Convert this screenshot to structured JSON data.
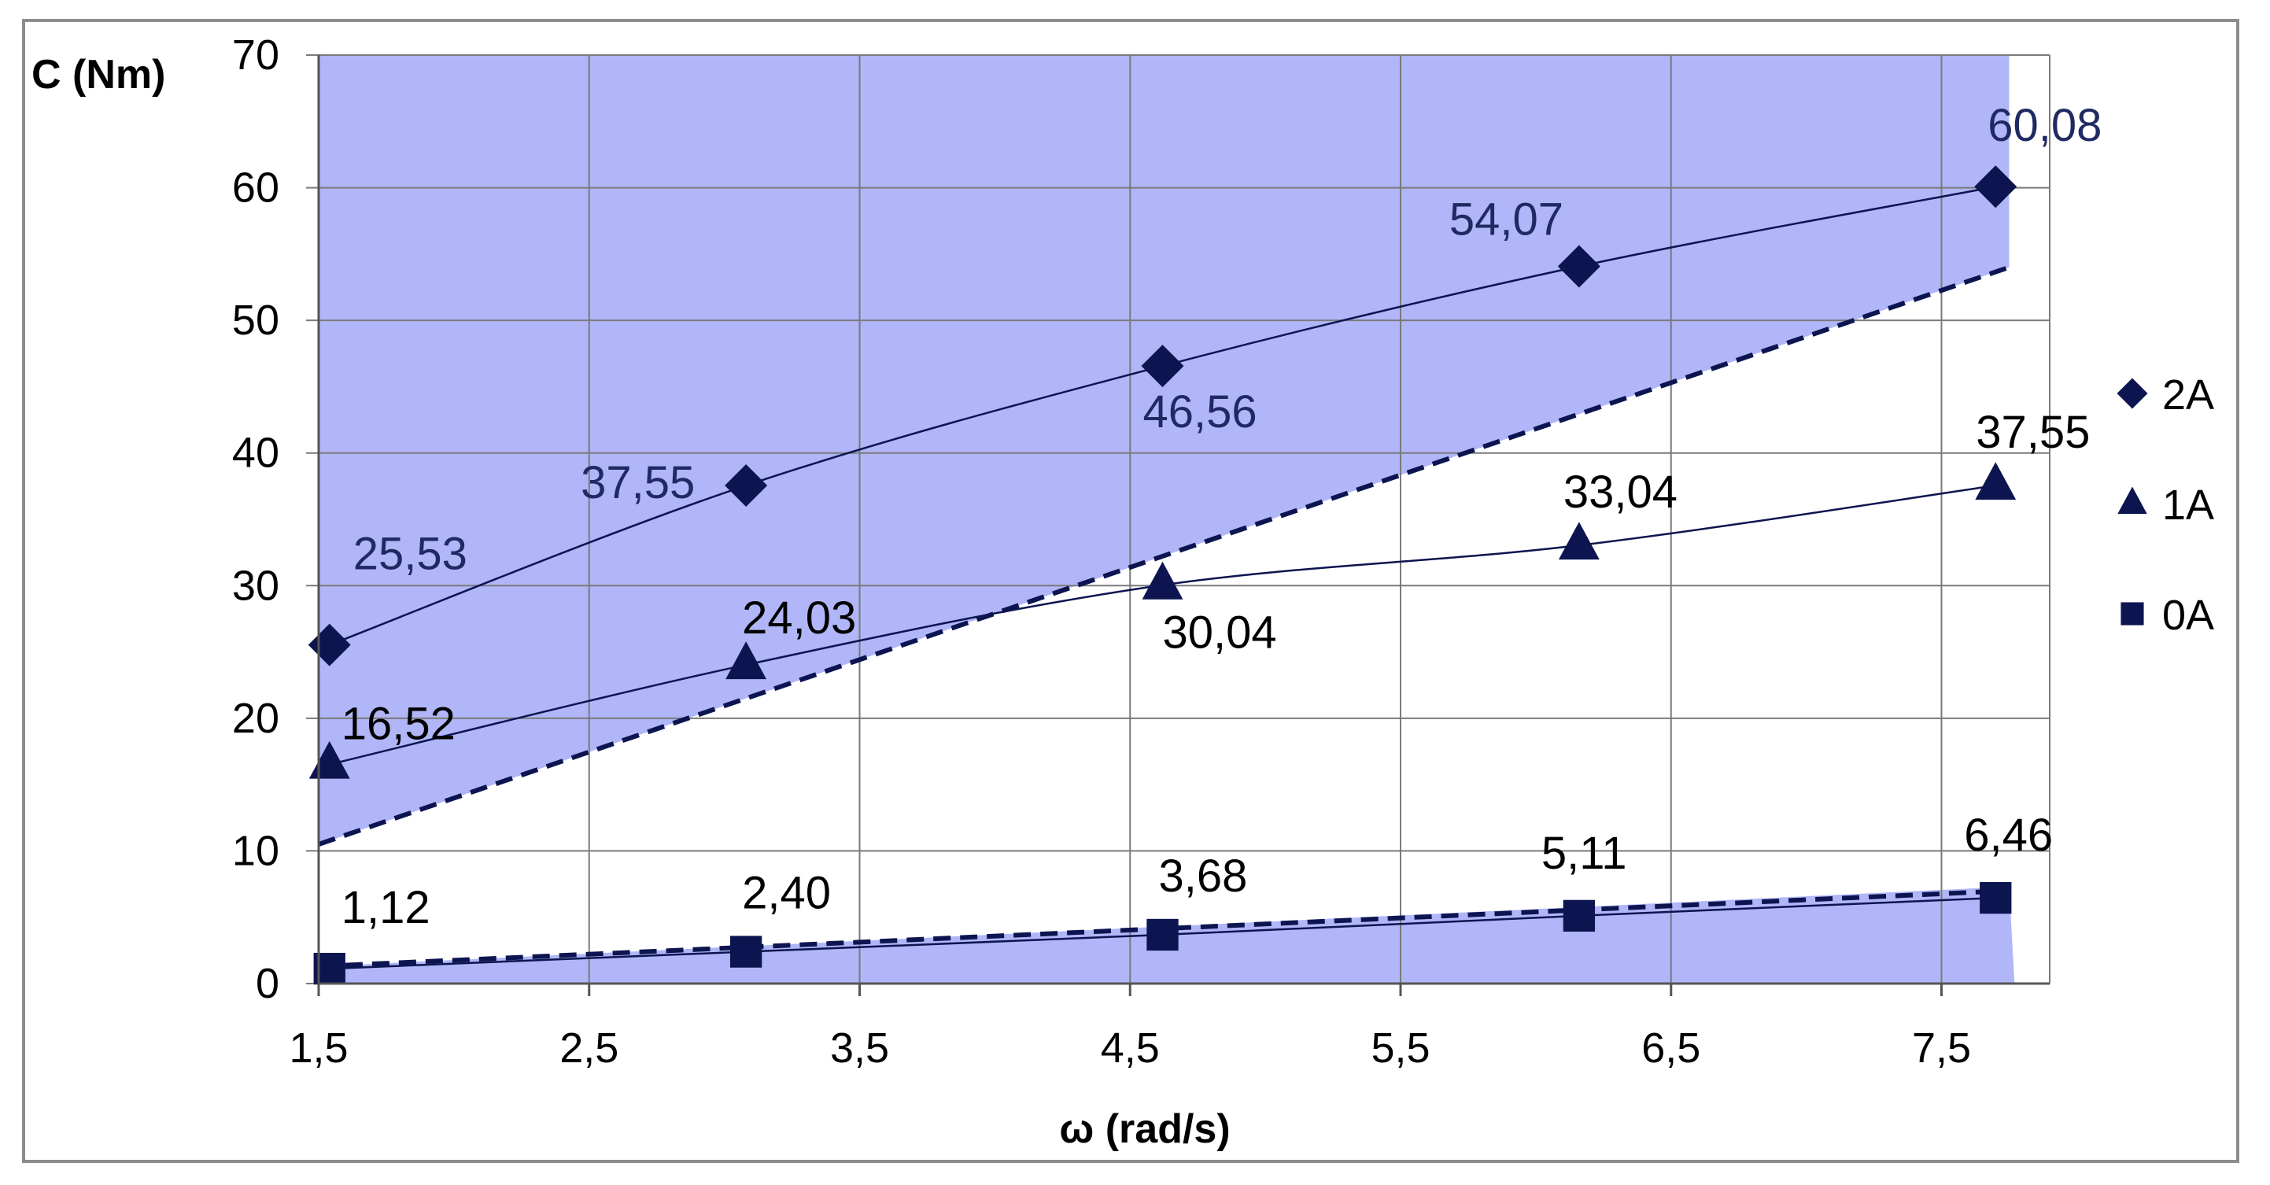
{
  "chart_data": {
    "type": "scatter",
    "xlabel": "ω (rad/s)",
    "ylabel": "C (Nm)",
    "xlim": [
      1.5,
      7.9
    ],
    "ylim": [
      0,
      70
    ],
    "x_ticks": [
      "1,5",
      "2,5",
      "3,5",
      "4,5",
      "5,5",
      "6,5",
      "7,5"
    ],
    "x_tick_values": [
      1.5,
      2.5,
      3.5,
      4.5,
      5.5,
      6.5,
      7.5
    ],
    "y_ticks": [
      "0",
      "10",
      "20",
      "30",
      "40",
      "50",
      "60",
      "70"
    ],
    "y_tick_values": [
      0,
      10,
      20,
      30,
      40,
      50,
      60,
      70
    ],
    "grid": true,
    "legend_position": "right",
    "series": [
      {
        "name": "2A",
        "marker": "diamond",
        "label_color": "#1f2a63",
        "x": [
          1.54,
          3.08,
          4.62,
          6.16,
          7.7
        ],
        "values": [
          25.53,
          37.55,
          46.56,
          54.07,
          60.08
        ],
        "labels": [
          "25,53",
          "37,55",
          "46,56",
          "54,07",
          "60,08"
        ]
      },
      {
        "name": "1A",
        "marker": "triangle",
        "label_color": "#000000",
        "x": [
          1.54,
          3.08,
          4.62,
          6.16,
          7.7
        ],
        "values": [
          16.52,
          24.03,
          30.04,
          33.04,
          37.55
        ],
        "labels": [
          "16,52",
          "24,03",
          "30,04",
          "33,04",
          "37,55"
        ]
      },
      {
        "name": "0A",
        "marker": "square",
        "label_color": "#000000",
        "x": [
          1.54,
          3.08,
          4.62,
          6.16,
          7.7
        ],
        "values": [
          1.12,
          2.4,
          3.68,
          5.11,
          6.46
        ],
        "labels": [
          "1,12",
          "2,40",
          "3,68",
          "5,11",
          "6,46"
        ]
      }
    ],
    "regions": [
      {
        "fill": "#b0b6f7",
        "polygon": [
          [
            1.5,
            70
          ],
          [
            7.75,
            70
          ],
          [
            7.75,
            54
          ],
          [
            1.5,
            10.5
          ]
        ]
      },
      {
        "fill": "#b0b6f7",
        "polygon": [
          [
            1.5,
            0
          ],
          [
            7.77,
            0
          ],
          [
            7.75,
            7.3
          ],
          [
            1.5,
            1.3
          ]
        ]
      }
    ],
    "dashed_lines": [
      {
        "x": [
          1.5,
          7.75
        ],
        "y": [
          10.5,
          54
        ]
      },
      {
        "x": [
          1.5,
          7.75
        ],
        "y": [
          1.3,
          7.0
        ]
      }
    ],
    "colors": {
      "marker": "#0d1550",
      "dashed": "#0d1550",
      "grid": "#7a7a7a"
    }
  }
}
